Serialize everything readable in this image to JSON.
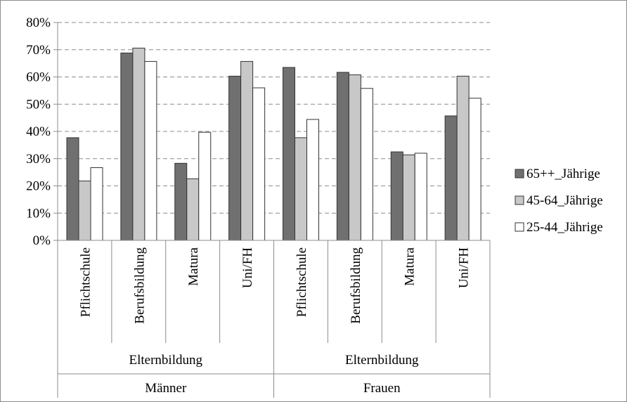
{
  "chart_data": {
    "type": "bar",
    "y_axis": {
      "min": 0,
      "max": 80,
      "step": 10,
      "tick_labels": [
        "0%",
        "10%",
        "20%",
        "30%",
        "40%",
        "50%",
        "60%",
        "70%",
        "80%"
      ]
    },
    "grid": "horizontal-dashed",
    "legend_position": "right",
    "categories": [
      "Pflichtschule",
      "Berufsbildung",
      "Matura",
      "Uni/FH",
      "Pflichtschule",
      "Berufsbildung",
      "Matura",
      "Uni/FH"
    ],
    "category_groups": [
      {
        "label": "Elternbildung",
        "span": [
          0,
          3
        ]
      },
      {
        "label": "Elternbildung",
        "span": [
          4,
          7
        ]
      }
    ],
    "outer_groups": [
      {
        "label": "Männer",
        "span": [
          0,
          3
        ]
      },
      {
        "label": "Frauen",
        "span": [
          4,
          7
        ]
      }
    ],
    "series": [
      {
        "name": "65++_Jährige",
        "color": "#707070",
        "values": [
          37.7,
          68.8,
          28.3,
          60.3,
          63.5,
          61.7,
          32.5,
          45.7
        ]
      },
      {
        "name": "45-64_Jährige",
        "color": "#c8c8c8",
        "values": [
          21.8,
          70.6,
          22.6,
          65.7,
          37.7,
          60.8,
          31.4,
          60.3
        ]
      },
      {
        "name": "25-44_Jährige",
        "color": "#ffffff",
        "values": [
          26.7,
          65.7,
          39.7,
          56.0,
          44.4,
          55.8,
          32.0,
          52.2
        ]
      }
    ]
  }
}
